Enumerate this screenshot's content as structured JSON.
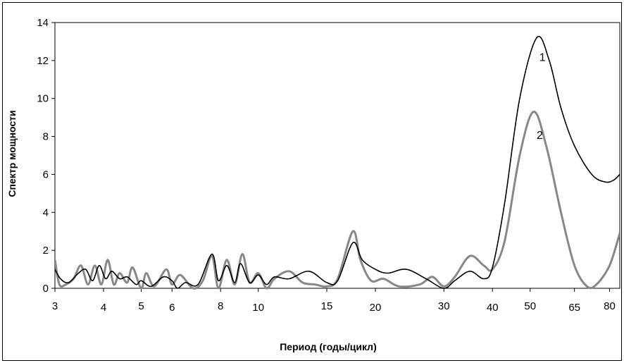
{
  "chart_data": {
    "type": "line",
    "xlabel": "Период (годы/цикл)",
    "ylabel": "Спектр мощности",
    "x_scale": "log",
    "xlim": [
      3,
      85
    ],
    "ylim": [
      0,
      14
    ],
    "xticks": [
      3,
      4,
      5,
      6,
      8,
      10,
      15,
      20,
      30,
      40,
      50,
      65,
      80
    ],
    "yticks": [
      0,
      2,
      4,
      6,
      8,
      10,
      12,
      14
    ],
    "grid": false,
    "series": [
      {
        "name": "1",
        "color": "#000000",
        "points": [
          [
            3.0,
            1.0
          ],
          [
            3.1,
            0.5
          ],
          [
            3.25,
            0.3
          ],
          [
            3.45,
            0.8
          ],
          [
            3.6,
            1.0
          ],
          [
            3.75,
            0.4
          ],
          [
            3.9,
            1.2
          ],
          [
            4.05,
            0.5
          ],
          [
            4.2,
            0.9
          ],
          [
            4.4,
            0.5
          ],
          [
            4.6,
            0.6
          ],
          [
            4.85,
            0.2
          ],
          [
            5.0,
            0.4
          ],
          [
            5.3,
            0.1
          ],
          [
            5.7,
            0.6
          ],
          [
            6.0,
            0.4
          ],
          [
            6.2,
            0.0
          ],
          [
            6.5,
            0.3
          ],
          [
            7.0,
            0.2
          ],
          [
            7.6,
            1.8
          ],
          [
            7.9,
            0.4
          ],
          [
            8.3,
            1.2
          ],
          [
            8.7,
            0.3
          ],
          [
            9.0,
            1.3
          ],
          [
            9.5,
            0.3
          ],
          [
            10.0,
            0.7
          ],
          [
            10.5,
            0.2
          ],
          [
            11.0,
            0.6
          ],
          [
            12.0,
            0.5
          ],
          [
            13.5,
            0.9
          ],
          [
            15.0,
            0.3
          ],
          [
            16.0,
            0.4
          ],
          [
            17.5,
            2.4
          ],
          [
            18.5,
            1.5
          ],
          [
            20.0,
            1.0
          ],
          [
            21.5,
            0.8
          ],
          [
            24.0,
            1.0
          ],
          [
            27.0,
            0.5
          ],
          [
            30.0,
            0.0
          ],
          [
            32.0,
            0.4
          ],
          [
            35.0,
            0.9
          ],
          [
            38.0,
            0.5
          ],
          [
            40.0,
            1.1
          ],
          [
            43.0,
            4.5
          ],
          [
            47.0,
            10.0
          ],
          [
            52.0,
            13.2
          ],
          [
            56.0,
            12.0
          ],
          [
            60.0,
            9.5
          ],
          [
            65.0,
            7.5
          ],
          [
            72.0,
            6.0
          ],
          [
            78.0,
            5.6
          ],
          [
            82.0,
            5.7
          ],
          [
            85.0,
            6.0
          ]
        ]
      },
      {
        "name": "2",
        "color": "#888888",
        "points": [
          [
            3.0,
            1.5
          ],
          [
            3.08,
            0.2
          ],
          [
            3.2,
            0.2
          ],
          [
            3.35,
            0.5
          ],
          [
            3.5,
            1.2
          ],
          [
            3.65,
            0.2
          ],
          [
            3.8,
            1.2
          ],
          [
            3.95,
            0.2
          ],
          [
            4.1,
            1.5
          ],
          [
            4.25,
            0.2
          ],
          [
            4.4,
            0.8
          ],
          [
            4.6,
            0.3
          ],
          [
            4.75,
            1.1
          ],
          [
            5.0,
            0.0
          ],
          [
            5.15,
            0.8
          ],
          [
            5.4,
            0.1
          ],
          [
            5.8,
            1.0
          ],
          [
            6.0,
            0.2
          ],
          [
            6.3,
            0.7
          ],
          [
            6.8,
            0.0
          ],
          [
            7.2,
            0.4
          ],
          [
            7.6,
            1.7
          ],
          [
            7.9,
            0.0
          ],
          [
            8.3,
            1.5
          ],
          [
            8.7,
            0.2
          ],
          [
            9.1,
            1.8
          ],
          [
            9.5,
            0.3
          ],
          [
            10.0,
            0.8
          ],
          [
            10.5,
            0.0
          ],
          [
            11.0,
            0.5
          ],
          [
            12.0,
            0.9
          ],
          [
            13.0,
            0.3
          ],
          [
            14.0,
            0.2
          ],
          [
            15.0,
            0.1
          ],
          [
            16.0,
            0.5
          ],
          [
            17.5,
            3.0
          ],
          [
            18.3,
            1.5
          ],
          [
            19.5,
            0.4
          ],
          [
            21.0,
            0.5
          ],
          [
            23.0,
            0.1
          ],
          [
            26.0,
            0.2
          ],
          [
            28.0,
            0.6
          ],
          [
            30.0,
            0.1
          ],
          [
            32.0,
            0.6
          ],
          [
            35.0,
            1.7
          ],
          [
            38.0,
            1.2
          ],
          [
            40.0,
            1.0
          ],
          [
            43.0,
            2.5
          ],
          [
            47.0,
            7.0
          ],
          [
            51.0,
            9.3
          ],
          [
            55.0,
            7.5
          ],
          [
            60.0,
            4.0
          ],
          [
            65.0,
            1.2
          ],
          [
            70.0,
            0.1
          ],
          [
            74.0,
            0.2
          ],
          [
            80.0,
            1.2
          ],
          [
            85.0,
            2.9
          ]
        ]
      }
    ],
    "annotations": [
      "1",
      "2"
    ]
  }
}
